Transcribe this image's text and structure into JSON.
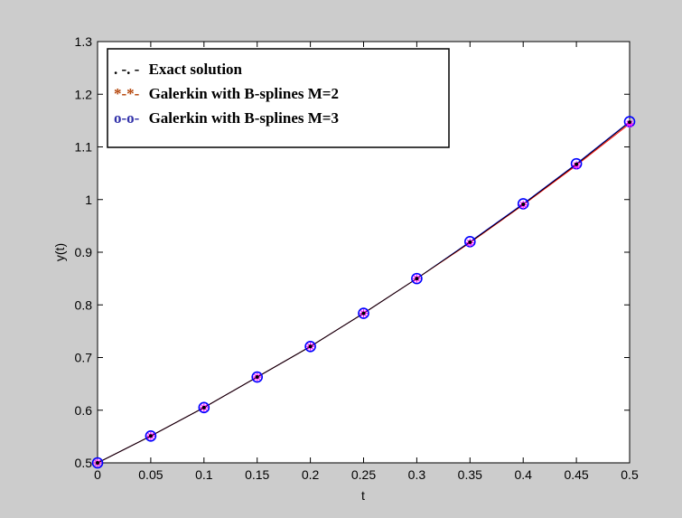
{
  "chart_data": {
    "type": "line",
    "title": "",
    "xlabel": "t",
    "ylabel": "y(t)",
    "xlim": [
      0,
      0.5
    ],
    "ylim": [
      0.5,
      1.3
    ],
    "xticks": [
      "0",
      "0.05",
      "0.1",
      "0.15",
      "0.2",
      "0.25",
      "0.3",
      "0.35",
      "0.4",
      "0.45",
      "0.5"
    ],
    "yticks": [
      "0.5",
      "0.6",
      "0.7",
      "0.8",
      "0.9",
      "1",
      "1.1",
      "1.2",
      "1.3"
    ],
    "grid": false,
    "legend_position": "top-left",
    "x": [
      0,
      0.05,
      0.1,
      0.15,
      0.2,
      0.25,
      0.3,
      0.35,
      0.4,
      0.45,
      0.5
    ],
    "series": [
      {
        "name": "Exact solution",
        "legend_marker": ". -. -",
        "color": "#000000",
        "values": [
          0.5,
          0.551,
          0.605,
          0.663,
          0.721,
          0.784,
          0.85,
          0.919,
          0.991,
          1.067,
          1.147
        ]
      },
      {
        "name": "Galerkin with B-splines M=2",
        "legend_marker": "*-*-",
        "color": "#b5460b",
        "values": [
          0.5,
          0.551,
          0.605,
          0.663,
          0.721,
          0.784,
          0.85,
          0.918,
          0.99,
          1.065,
          1.144
        ]
      },
      {
        "name": "Galerkin with B-splines M=3",
        "legend_marker": "o-o-",
        "color": "#3333aa",
        "values": [
          0.5,
          0.551,
          0.605,
          0.663,
          0.721,
          0.784,
          0.85,
          0.92,
          0.992,
          1.068,
          1.148
        ]
      }
    ]
  },
  "colors": {
    "figure_background": "#cccccc",
    "axes_background": "#ffffff",
    "m2_line": "#ff0000",
    "m2_marker": "#ff00ff",
    "m3_marker": "#0000ff"
  }
}
